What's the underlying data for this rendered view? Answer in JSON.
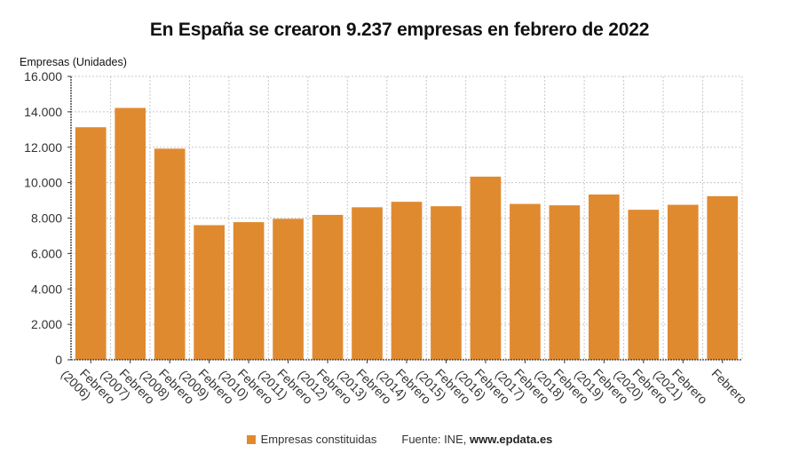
{
  "chart_data": {
    "type": "bar",
    "title": "En España se crearon 9.237 empresas en febrero de 2022",
    "xlabel": "",
    "ylabel": "Empresas (Unidades)",
    "ylim": [
      0,
      16000
    ],
    "yticks": [
      0,
      2000,
      4000,
      6000,
      8000,
      10000,
      12000,
      14000,
      16000
    ],
    "ytick_labels": [
      "0",
      "2.000",
      "4.000",
      "6.000",
      "8.000",
      "10.000",
      "12.000",
      "14.000",
      "16.000"
    ],
    "grid": true,
    "legend_position": "bottom-center",
    "categories": [
      [
        "Febrero",
        "(2006)"
      ],
      [
        "Febrero",
        "(2007)"
      ],
      [
        "Febrero",
        "(2008)"
      ],
      [
        "Febrero",
        "(2009)"
      ],
      [
        "Febrero",
        "(2010)"
      ],
      [
        "Febrero",
        "(2011)"
      ],
      [
        "Febrero",
        "(2012)"
      ],
      [
        "Febrero",
        "(2013)"
      ],
      [
        "Febrero",
        "(2014)"
      ],
      [
        "Febrero",
        "(2015)"
      ],
      [
        "Febrero",
        "(2016)"
      ],
      [
        "Febrero",
        "(2017)"
      ],
      [
        "Febrero",
        "(2018)"
      ],
      [
        "Febrero",
        "(2019)"
      ],
      [
        "Febrero",
        "(2020)"
      ],
      [
        "Febrero",
        "(2021)"
      ],
      [
        "Febrero"
      ]
    ],
    "series": [
      {
        "name": "Empresas constituidas",
        "color": "#e08a30",
        "values": [
          13130,
          14220,
          11920,
          7600,
          7770,
          7960,
          8180,
          8610,
          8920,
          8670,
          10340,
          8800,
          8720,
          9330,
          8470,
          8750,
          9237
        ]
      }
    ]
  },
  "legend": {
    "series_label": "Empresas constituidas",
    "source_prefix": "Fuente: INE, ",
    "source_site": "www.epdata.es"
  }
}
